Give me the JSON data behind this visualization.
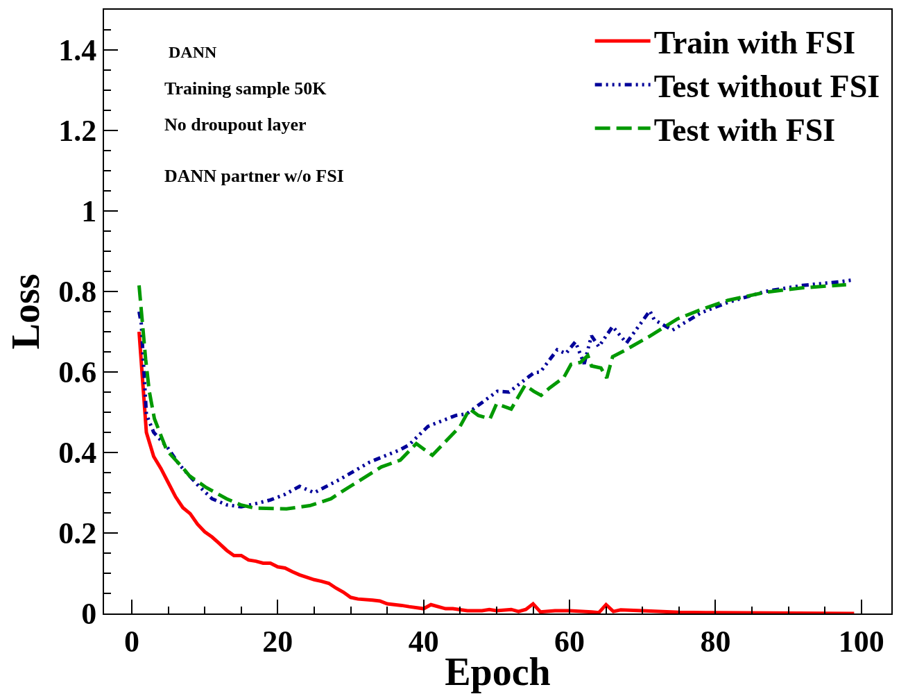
{
  "chart_data": {
    "type": "line",
    "xlabel": "Epoch",
    "ylabel": "Loss",
    "xlim": [
      -3.8,
      104.1
    ],
    "ylim": [
      0,
      1.5
    ],
    "xticks": [
      0,
      20,
      40,
      60,
      80,
      100
    ],
    "yticks": [
      0,
      0.2,
      0.4,
      0.6,
      0.8,
      1,
      1.2,
      1.4
    ],
    "grid": false,
    "legend": "top right",
    "marker": "none",
    "annotations": [
      "DANN",
      "Training sample 50K",
      "No droupout layer",
      "DANN partner w/o FSI"
    ],
    "series": [
      {
        "name": "Train with FSI",
        "color": "#ff0000",
        "line_style": "solid",
        "x": [
          1,
          2,
          3,
          4,
          5,
          6,
          7,
          8,
          9,
          10,
          11,
          12,
          13,
          14,
          15,
          16,
          17,
          18,
          19,
          20,
          21,
          22,
          23,
          24,
          25,
          26,
          27,
          28,
          29,
          30,
          31,
          33,
          34,
          35,
          37,
          38,
          40,
          41,
          43,
          44,
          46,
          48,
          49,
          50,
          52,
          53,
          54,
          55,
          56,
          58,
          60,
          63,
          64,
          65,
          66,
          67,
          70,
          75,
          80,
          99
        ],
        "values": [
          0.7,
          0.45,
          0.39,
          0.36,
          0.325,
          0.29,
          0.263,
          0.248,
          0.222,
          0.203,
          0.19,
          0.174,
          0.157,
          0.144,
          0.144,
          0.133,
          0.13,
          0.125,
          0.125,
          0.116,
          0.113,
          0.104,
          0.096,
          0.09,
          0.084,
          0.08,
          0.075,
          0.063,
          0.053,
          0.04,
          0.036,
          0.033,
          0.031,
          0.024,
          0.02,
          0.017,
          0.012,
          0.022,
          0.012,
          0.012,
          0.007,
          0.007,
          0.01,
          0.007,
          0.01,
          0.005,
          0.01,
          0.024,
          0.004,
          0.007,
          0.007,
          0.004,
          0.002,
          0.022,
          0.005,
          0.009,
          0.007,
          0.003,
          0.002,
          0.0
        ]
      },
      {
        "name": "Test without FSI",
        "color": "#000099",
        "line_style": "dotted",
        "x": [
          1,
          1.3,
          2,
          3,
          5,
          6.5,
          9,
          11,
          13,
          15,
          17,
          19,
          21,
          23,
          25,
          28.5,
          32.6,
          36.8,
          38,
          40.6,
          44.4,
          45.9,
          50.1,
          51.7,
          55.1,
          56,
          58.3,
          59.5,
          60.8,
          62,
          63,
          64,
          65.9,
          67.8,
          71,
          71.6,
          74.1,
          78,
          81.7,
          86.8,
          91.9,
          97,
          98.9
        ],
        "values": [
          0.75,
          0.72,
          0.495,
          0.45,
          0.41,
          0.37,
          0.32,
          0.285,
          0.27,
          0.265,
          0.273,
          0.282,
          0.296,
          0.316,
          0.3,
          0.333,
          0.376,
          0.407,
          0.419,
          0.465,
          0.492,
          0.496,
          0.552,
          0.55,
          0.598,
          0.6,
          0.655,
          0.646,
          0.675,
          0.62,
          0.69,
          0.663,
          0.713,
          0.672,
          0.752,
          0.73,
          0.704,
          0.747,
          0.773,
          0.8,
          0.815,
          0.824,
          0.829
        ]
      },
      {
        "name": "Test with FSI",
        "color": "#009900",
        "line_style": "dashed",
        "x": [
          1,
          1.9,
          2.4,
          3.1,
          4.8,
          6.9,
          7.9,
          10.2,
          13,
          14.9,
          16.8,
          21.2,
          24.4,
          27.3,
          28.8,
          34.2,
          36.8,
          39,
          41.2,
          45,
          46.3,
          47.5,
          49.1,
          50,
          52,
          53.9,
          55.1,
          56.1,
          57.3,
          59.2,
          60.2,
          61.5,
          62.5,
          63,
          64.3,
          65.1,
          65.9,
          67.5,
          71,
          74.8,
          78,
          81.7,
          86.8,
          91.9,
          97.9
        ],
        "values": [
          0.815,
          0.632,
          0.552,
          0.484,
          0.405,
          0.364,
          0.342,
          0.313,
          0.285,
          0.27,
          0.262,
          0.26,
          0.268,
          0.285,
          0.303,
          0.364,
          0.381,
          0.422,
          0.393,
          0.465,
          0.508,
          0.492,
          0.484,
          0.521,
          0.508,
          0.567,
          0.552,
          0.542,
          0.561,
          0.586,
          0.619,
          0.624,
          0.641,
          0.615,
          0.61,
          0.585,
          0.638,
          0.653,
          0.689,
          0.732,
          0.755,
          0.778,
          0.798,
          0.809,
          0.817
        ]
      }
    ]
  }
}
